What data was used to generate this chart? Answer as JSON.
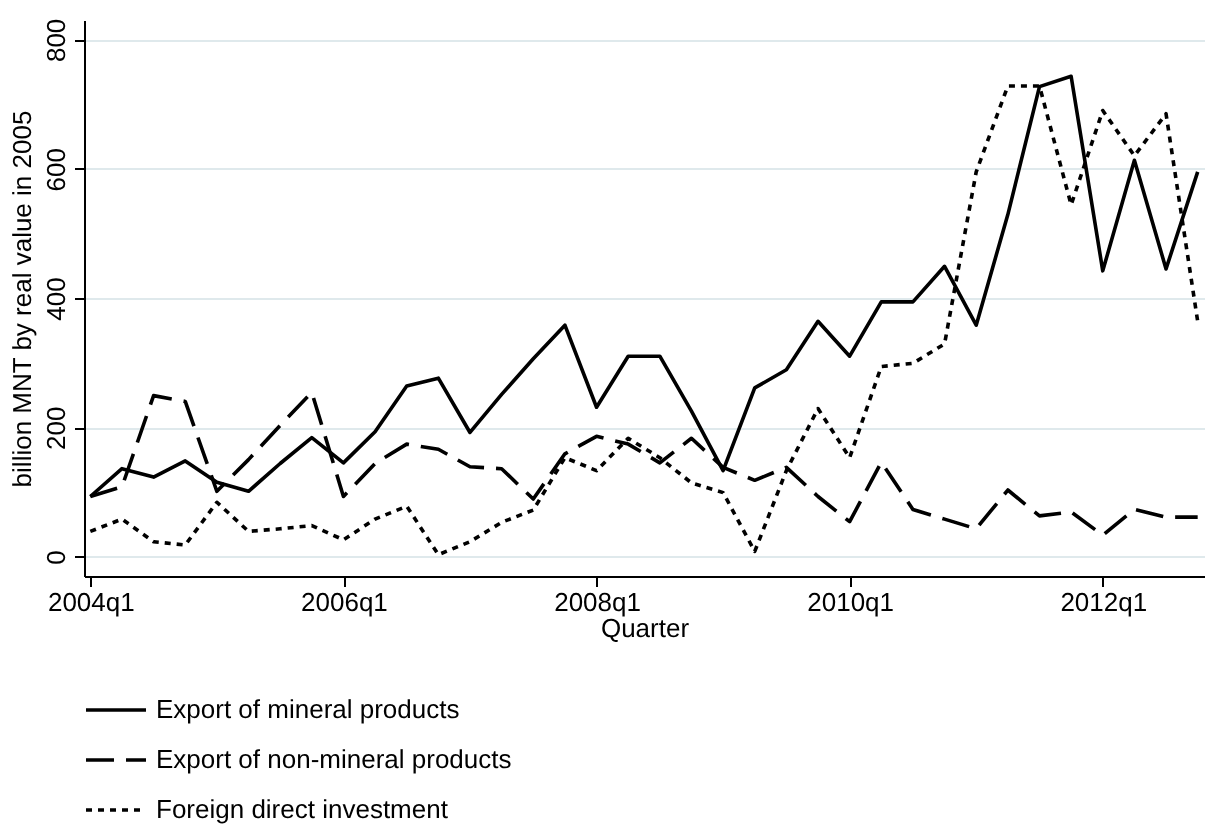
{
  "chart_data": {
    "type": "line",
    "xlabel": "Quarter",
    "ylabel": "billion MNT by real value  in 2005",
    "categories": [
      "2004q1",
      null,
      null,
      null,
      null,
      null,
      null,
      null,
      "2006q1",
      null,
      null,
      null,
      null,
      null,
      null,
      null,
      "2008q1",
      null,
      null,
      null,
      null,
      null,
      null,
      null,
      "2010q1",
      null,
      null,
      null,
      null,
      null,
      null,
      null,
      "2012q1",
      null,
      null,
      null
    ],
    "series": [
      {
        "name": "Export of mineral products",
        "color": "#000000",
        "line_style": "solid",
        "values": [
          93,
          136,
          123,
          148,
          115,
          101,
          144,
          184,
          145,
          193,
          264,
          276,
          192,
          251,
          306,
          358,
          231,
          310,
          310,
          225,
          133,
          261,
          289,
          364,
          310,
          394,
          394,
          449,
          358,
          529,
          727,
          743,
          442,
          613,
          445,
          595
        ]
      },
      {
        "name": "Export of non-mineral products",
        "color": "#000000",
        "line_style": "dashed",
        "values": [
          93,
          108,
          249,
          240,
          101,
          150,
          203,
          254,
          93,
          144,
          174,
          166,
          139,
          136,
          89,
          159,
          186,
          174,
          145,
          183,
          138,
          118,
          138,
          93,
          54,
          146,
          73,
          58,
          43,
          103,
          63,
          69,
          33,
          73,
          61,
          61
        ]
      },
      {
        "name": "Foreign direct investment",
        "color": "#000000",
        "line_style": "dotted",
        "values": [
          39,
          58,
          23,
          18,
          84,
          39,
          43,
          48,
          26,
          58,
          78,
          3,
          23,
          53,
          72,
          153,
          133,
          183,
          153,
          114,
          99,
          8,
          133,
          229,
          153,
          294,
          299,
          329,
          595,
          728,
          728,
          544,
          690,
          620,
          685,
          364
        ]
      }
    ],
    "ylim": [
      -30,
      830
    ],
    "yticks": [
      0,
      200,
      400,
      600,
      800
    ],
    "grid": "y",
    "legend": "bottom",
    "marker": "none"
  }
}
